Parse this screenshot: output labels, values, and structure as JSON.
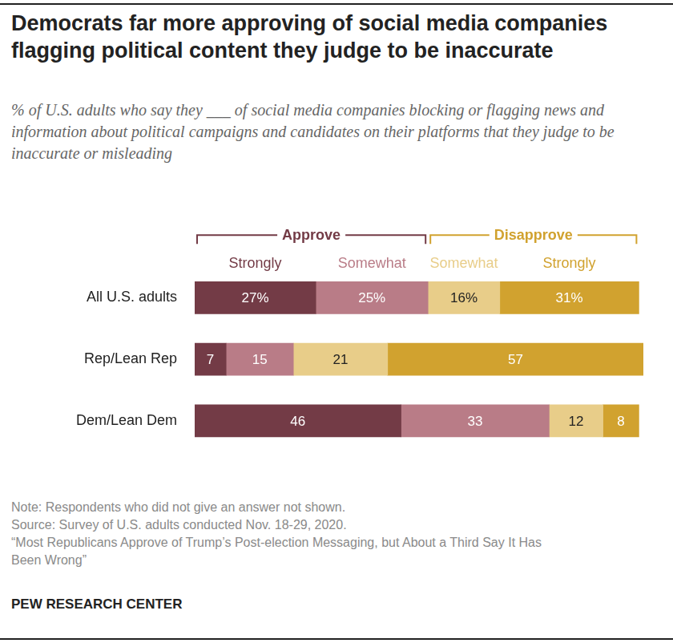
{
  "chart_data": {
    "type": "bar",
    "orientation": "horizontal",
    "stacked": true,
    "title": "Democrats far more approving of social media companies flagging political content they judge to be inaccurate",
    "subtitle": "% of U.S. adults who say they ___ of social media companies blocking or flagging news and information about political campaigns and candidates on their platforms that they judge to be inaccurate or misleading",
    "categories": [
      "All U.S. adults",
      "Rep/Lean Rep",
      "Dem/Lean Dem"
    ],
    "series": [
      {
        "name": "Strongly",
        "group": "Approve",
        "color": "#733b46",
        "values": [
          27,
          7,
          46
        ],
        "value_labels": [
          "27%",
          "7",
          "46"
        ]
      },
      {
        "name": "Somewhat",
        "group": "Approve",
        "color": "#b97c87",
        "values": [
          25,
          15,
          33
        ],
        "value_labels": [
          "25%",
          "15",
          "33"
        ]
      },
      {
        "name": "Somewhat",
        "group": "Disapprove",
        "color": "#e8cd89",
        "values": [
          16,
          21,
          12
        ],
        "value_labels": [
          "16%",
          "21",
          "12"
        ]
      },
      {
        "name": "Strongly",
        "group": "Disapprove",
        "color": "#d1a22f",
        "values": [
          31,
          57,
          8
        ],
        "value_labels": [
          "31%",
          "57",
          "8"
        ]
      }
    ],
    "xlim": [
      0,
      100
    ],
    "data_labels": true,
    "tick_labels": "y",
    "grid": false,
    "legend": "top",
    "notes": [
      "Note: Respondents who did not give an answer not shown.",
      "Source: Survey of U.S. adults conducted Nov. 18-29, 2020.",
      "“Most Republicans Approve of Trump’s Post-election Messaging, but About a Third Say It Has Been Wrong”"
    ],
    "source_label": "PEW RESEARCH CENTER"
  }
}
